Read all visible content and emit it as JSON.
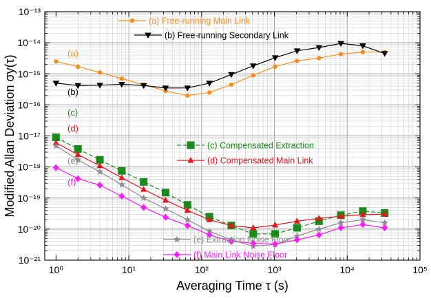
{
  "chart_data": {
    "type": "line",
    "xscale": "log",
    "yscale": "log",
    "xlim": [
      0.7,
      100000
    ],
    "ylim": [
      1e-21,
      1e-13
    ],
    "grid": true,
    "legend_placement": "top-center",
    "xlabel": "Averaging Time τ (s)",
    "ylabel": "Modified Allan Deviation σy(τ)",
    "xtick_labels": [
      "10⁰",
      "10¹",
      "10²",
      "10³",
      "10⁴",
      "10⁵"
    ],
    "ytick_labels": [
      "10⁻²¹",
      "10⁻²⁰",
      "10⁻¹⁹",
      "10⁻¹⁸",
      "10⁻¹⁷",
      "10⁻¹⁶",
      "10⁻¹⁵",
      "10⁻¹⁴",
      "10⁻¹³"
    ],
    "x": [
      1,
      2,
      4,
      8,
      16,
      32,
      64,
      128,
      256,
      512,
      1024,
      2048,
      4096,
      8192,
      16384,
      32768
    ],
    "series": [
      {
        "name": "(a) Free-running Main Link",
        "label": "(a)",
        "color": "#ff8c1a",
        "marker": "circle",
        "dashed": false,
        "values": [
          2.5e-15,
          1.7e-15,
          1.1e-15,
          7e-16,
          4.5e-16,
          2.8e-16,
          2e-16,
          2.5e-16,
          4.5e-16,
          9e-16,
          1.7e-15,
          2.6e-15,
          3.2e-15,
          4.3e-15,
          5e-15,
          5e-15
        ]
      },
      {
        "name": "(b) Free-running Secondary Link",
        "label": "(b)",
        "color": "#000000",
        "marker": "triangle-down",
        "dashed": false,
        "values": [
          5e-16,
          4.2e-16,
          4.3e-16,
          4.6e-16,
          4.2e-16,
          3.5e-16,
          3.5e-16,
          5e-16,
          9.5e-16,
          1.8e-15,
          3.3e-15,
          5.5e-15,
          7e-15,
          9.5e-15,
          8e-15,
          4.5e-15
        ]
      },
      {
        "name": "(c) Compensated Extraction",
        "label": "(c)",
        "color": "#1a8a1a",
        "marker": "square",
        "dashed": true,
        "values": [
          9e-18,
          3.8e-18,
          1.7e-18,
          7.5e-19,
          3.3e-19,
          1.5e-19,
          6e-20,
          2.5e-20,
          1.3e-20,
          7e-21,
          7e-21,
          1.1e-20,
          1.8e-20,
          2.8e-20,
          3.8e-20,
          3.3e-20
        ]
      },
      {
        "name": "(d) Compensated Main Link",
        "label": "(d)",
        "color": "#e8141e",
        "marker": "triangle-up",
        "dashed": false,
        "values": [
          6e-18,
          2.5e-18,
          1.1e-18,
          4.5e-19,
          1.9e-19,
          8.5e-20,
          4e-20,
          2e-20,
          1.3e-20,
          1.1e-20,
          1.35e-20,
          1.8e-20,
          2.2e-20,
          2.6e-20,
          2.9e-20,
          3e-20
        ]
      },
      {
        "name": "(e) Extraction Noise Floor",
        "label": "(e)",
        "color": "#8c8c8c",
        "marker": "star",
        "dashed": false,
        "values": [
          4.8e-18,
          1.7e-18,
          7e-19,
          2.7e-19,
          1e-19,
          4.5e-20,
          2e-20,
          8.5e-21,
          4.5e-21,
          2.8e-21,
          3.2e-21,
          6e-21,
          1e-20,
          1.6e-20,
          2e-20,
          1.6e-20
        ]
      },
      {
        "name": "(f) Main Link Noise Floor",
        "label": "(f)",
        "color": "#ff1aff",
        "marker": "diamond",
        "dashed": false,
        "values": [
          9.5e-19,
          4.2e-19,
          2.6e-19,
          1.15e-19,
          5e-20,
          2.4e-20,
          1.3e-20,
          6.5e-21,
          4e-21,
          3.5e-21,
          3.3e-21,
          4.5e-21,
          6.5e-21,
          1.1e-20,
          1.4e-20,
          1.1e-20
        ]
      }
    ]
  }
}
